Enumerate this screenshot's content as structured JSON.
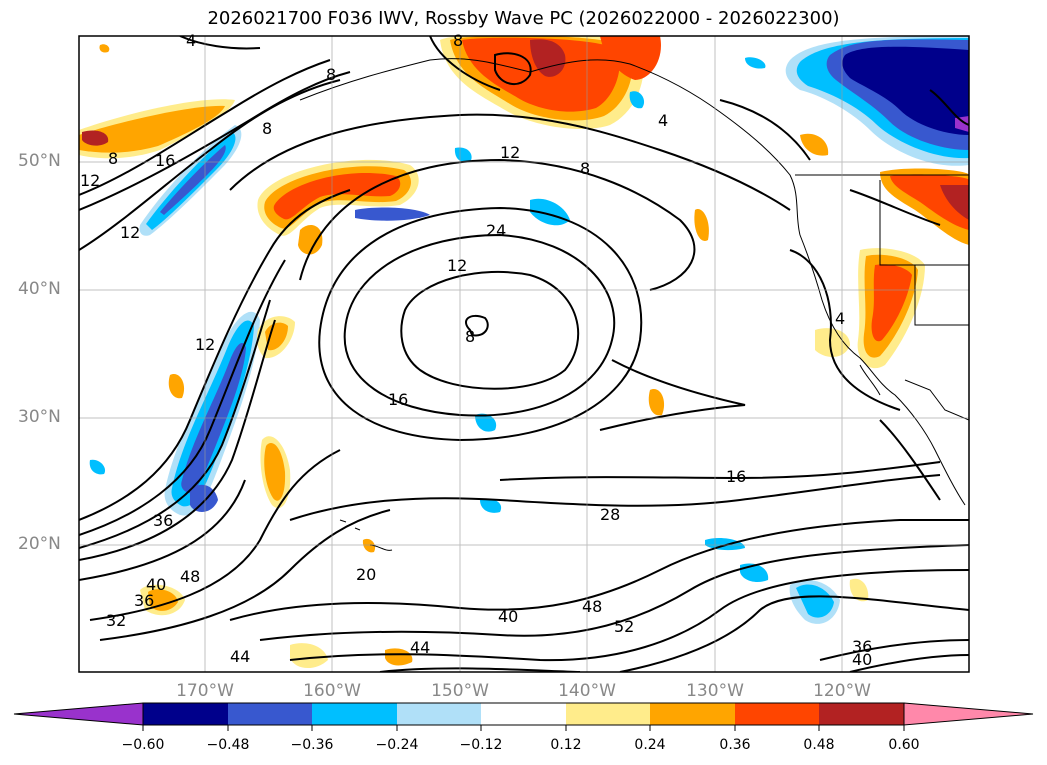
{
  "title": "2026021700 F036 IWV, Rossby Wave PC (2026022000 - 2026022300)",
  "latitude_labels": [
    "50°N",
    "40°N",
    "30°N",
    "20°N"
  ],
  "longitude_labels": [
    "170°W",
    "160°W",
    "150°W",
    "140°W",
    "130°W",
    "120°W"
  ],
  "colorbar": {
    "ticks": [
      "−0.60",
      "−0.48",
      "−0.36",
      "−0.24",
      "−0.12",
      "0.12",
      "0.24",
      "0.36",
      "0.48",
      "0.60"
    ],
    "colors": [
      "#9932cc",
      "#00008b",
      "#3858cf",
      "#00bfff",
      "#b0e0f8",
      "#ffffff",
      "#ffec8b",
      "#ffa500",
      "#ff4500",
      "#b22222",
      "#ff88aa"
    ]
  },
  "contour_labels": [
    "4",
    "8",
    "8",
    "8",
    "12",
    "8",
    "16",
    "12",
    "12",
    "8",
    "4",
    "24",
    "12",
    "12",
    "8",
    "16",
    "16",
    "36",
    "48",
    "40",
    "36",
    "32",
    "44",
    "44",
    "20",
    "28",
    "40",
    "48",
    "52",
    "36",
    "40",
    "4"
  ]
}
